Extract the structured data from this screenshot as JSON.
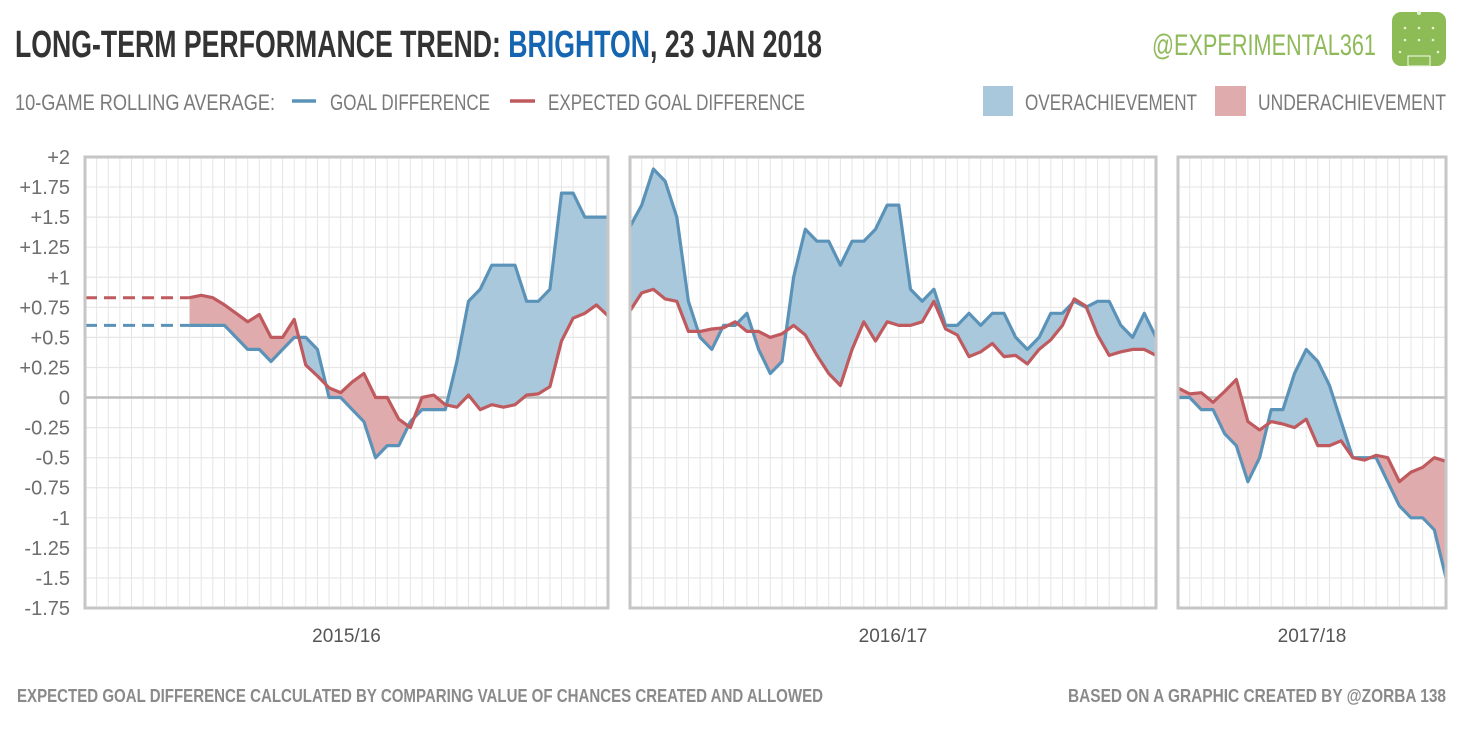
{
  "header": {
    "title_prefix": "LONG-TERM PERFORMANCE TREND: ",
    "title_team": "BRIGHTON",
    "title_suffix": ", 23 JAN 2018",
    "handle": "@EXPERIMENTAL361",
    "logo_icon": "football-pitch-icon"
  },
  "legend": {
    "rolling_label": "10-GAME ROLLING AVERAGE:",
    "gd_label": "GOAL DIFFERENCE",
    "xgd_label": "EXPECTED GOAL DIFFERENCE",
    "over_label": "OVERACHIEVEMENT",
    "under_label": "UNDERACHIEVEMENT"
  },
  "footer": {
    "left": "EXPECTED GOAL DIFFERENCE CALCULATED BY COMPARING VALUE OF CHANCES CREATED AND ALLOWED",
    "right": "BASED ON A GRAPHIC CREATED BY @ZORBA 138"
  },
  "colors": {
    "team": "#1565b0",
    "handle": "#8fba5a",
    "gd_line": "#5b93b8",
    "xgd_line": "#bf5a5e",
    "over_fill": "#a9c8dc",
    "under_fill": "#e0abad"
  },
  "chart_data": {
    "type": "line",
    "title": "LONG-TERM PERFORMANCE TREND: BRIGHTON, 23 JAN 2018",
    "ylim": [
      -1.75,
      2
    ],
    "yticks": [
      "+2",
      "+1.75",
      "+1.5",
      "+1.25",
      "+1",
      "+0.75",
      "+0.5",
      "+0.25",
      "0",
      "-0.25",
      "-0.5",
      "-0.75",
      "-1",
      "-1.25",
      "-1.5",
      "-1.75"
    ],
    "grid": true,
    "fill_between": true,
    "series_names": [
      "GOAL DIFFERENCE",
      "EXPECTED GOAL DIFFERENCE"
    ],
    "panels": [
      {
        "season": "2015/16",
        "xlim": [
          1,
          46
        ],
        "start_game": 10,
        "carryover": {
          "gd": 0.6,
          "xgd": 0.83
        },
        "gd": [
          0.6,
          0.6,
          0.6,
          0.6,
          0.5,
          0.4,
          0.4,
          0.3,
          0.4,
          0.5,
          0.5,
          0.4,
          0.0,
          0.0,
          -0.1,
          -0.2,
          -0.5,
          -0.4,
          -0.4,
          -0.2,
          -0.1,
          -0.1,
          -0.1,
          0.3,
          0.8,
          0.9,
          1.1,
          1.1,
          1.1,
          0.8,
          0.8,
          0.9,
          1.7,
          1.7,
          1.5,
          1.5,
          1.5
        ],
        "xgd": [
          0.83,
          0.85,
          0.83,
          0.77,
          0.7,
          0.63,
          0.69,
          0.5,
          0.5,
          0.65,
          0.27,
          0.18,
          0.08,
          0.04,
          0.13,
          0.2,
          0.0,
          0.0,
          -0.18,
          -0.25,
          0.0,
          0.02,
          -0.06,
          -0.08,
          0.02,
          -0.1,
          -0.06,
          -0.08,
          -0.06,
          0.02,
          0.03,
          0.09,
          0.47,
          0.66,
          0.7,
          0.77,
          0.68
        ]
      },
      {
        "season": "2016/17",
        "xlim": [
          1,
          46
        ],
        "start_game": 1,
        "gd": [
          1.42,
          1.6,
          1.9,
          1.8,
          1.5,
          0.8,
          0.5,
          0.4,
          0.6,
          0.6,
          0.7,
          0.4,
          0.2,
          0.3,
          1.0,
          1.4,
          1.3,
          1.3,
          1.1,
          1.3,
          1.3,
          1.4,
          1.6,
          1.6,
          0.9,
          0.8,
          0.9,
          0.6,
          0.6,
          0.7,
          0.6,
          0.7,
          0.7,
          0.5,
          0.4,
          0.5,
          0.7,
          0.7,
          0.8,
          0.75,
          0.8,
          0.8,
          0.6,
          0.5,
          0.7,
          0.5
        ],
        "xgd": [
          0.72,
          0.87,
          0.9,
          0.82,
          0.8,
          0.55,
          0.55,
          0.57,
          0.58,
          0.63,
          0.55,
          0.55,
          0.5,
          0.53,
          0.6,
          0.52,
          0.35,
          0.2,
          0.1,
          0.4,
          0.63,
          0.47,
          0.63,
          0.6,
          0.6,
          0.63,
          0.8,
          0.57,
          0.52,
          0.34,
          0.38,
          0.45,
          0.34,
          0.35,
          0.28,
          0.4,
          0.48,
          0.6,
          0.82,
          0.76,
          0.52,
          0.35,
          0.38,
          0.4,
          0.4,
          0.35
        ]
      },
      {
        "season": "2017/18",
        "xlim": [
          1,
          24
        ],
        "start_game": 1,
        "gd": [
          0.0,
          0.0,
          -0.1,
          -0.1,
          -0.3,
          -0.4,
          -0.7,
          -0.5,
          -0.1,
          -0.1,
          0.2,
          0.4,
          0.3,
          0.1,
          -0.2,
          -0.5,
          -0.5,
          -0.5,
          -0.7,
          -0.9,
          -1.0,
          -1.0,
          -1.1,
          -1.5
        ],
        "xgd": [
          0.08,
          0.03,
          0.04,
          -0.04,
          0.05,
          0.15,
          -0.2,
          -0.27,
          -0.2,
          -0.22,
          -0.25,
          -0.18,
          -0.4,
          -0.4,
          -0.36,
          -0.5,
          -0.52,
          -0.48,
          -0.5,
          -0.7,
          -0.62,
          -0.58,
          -0.5,
          -0.53
        ]
      }
    ]
  }
}
